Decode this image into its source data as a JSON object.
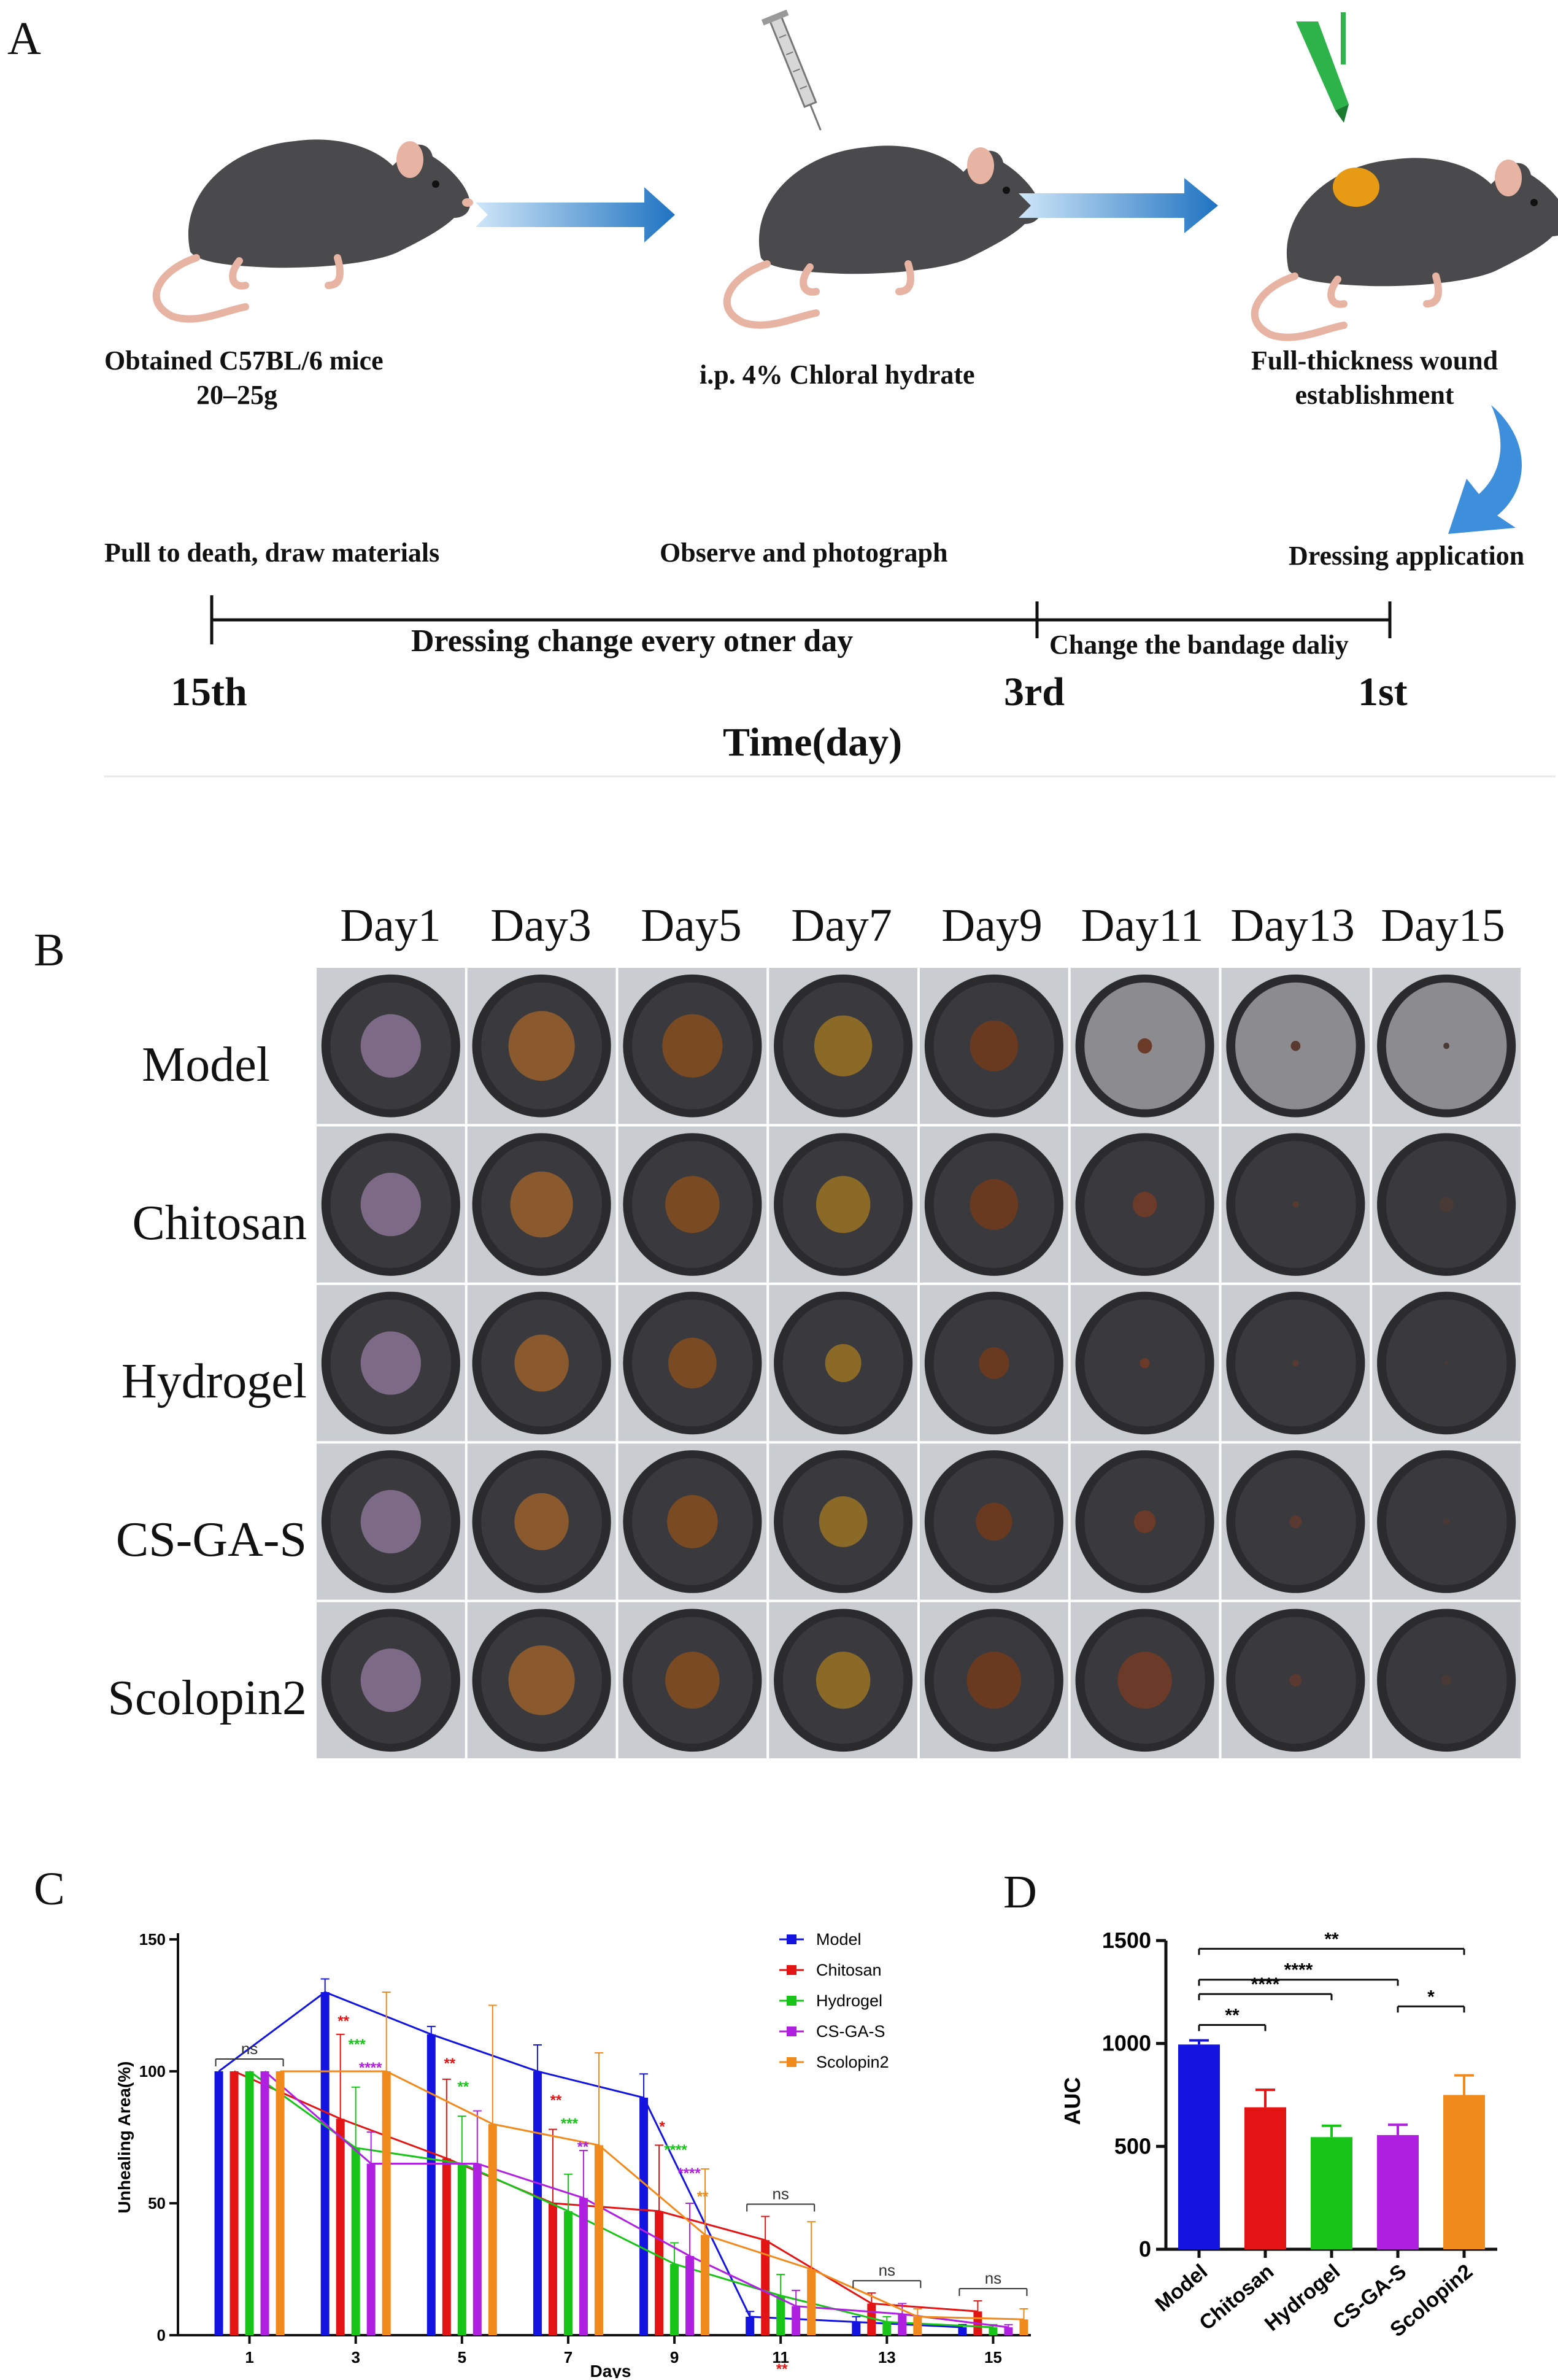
{
  "panel_a": {
    "letter": "A",
    "steps": [
      {
        "line1": "Obtained C57BL/6 mice",
        "line2": "20–25g"
      },
      {
        "line1": "i.p. 4% Chloral hydrate",
        "line2": ""
      },
      {
        "line1": "Full-thickness wound",
        "line2": "establishment"
      }
    ],
    "dressing_application": "Dressing application",
    "timeline": {
      "pull_to_death": "Pull to death, draw materials",
      "observe": "Observe and photograph",
      "dressing_change": "Dressing change every otner day",
      "change_bandage": "Change the bandage daliy",
      "tick_15": "15th",
      "tick_3": "3rd",
      "tick_1": "1st",
      "axis_label": "Time(day)"
    },
    "colors": {
      "mouse": "#4a4a4c",
      "arrow": "#1f73c2",
      "wound": "#e79a14",
      "pen": "#2db34a"
    }
  },
  "panel_b": {
    "letter": "B",
    "days": [
      "Day1",
      "Day3",
      "Day5",
      "Day7",
      "Day9",
      "Day11",
      "Day13",
      "Day15"
    ],
    "groups": [
      "Model",
      "Chitosan",
      "Hydrogel",
      "CS-GA-S",
      "Scolopin2"
    ],
    "wound_size": [
      [
        0.5,
        0.55,
        0.5,
        0.48,
        0.4,
        0.12,
        0.08,
        0.05
      ],
      [
        0.5,
        0.52,
        0.45,
        0.45,
        0.4,
        0.2,
        0.05,
        0.12
      ],
      [
        0.5,
        0.45,
        0.4,
        0.3,
        0.25,
        0.08,
        0.05,
        0.03
      ],
      [
        0.5,
        0.45,
        0.42,
        0.4,
        0.3,
        0.18,
        0.1,
        0.05
      ],
      [
        0.5,
        0.55,
        0.45,
        0.45,
        0.45,
        0.45,
        0.1,
        0.08
      ]
    ]
  },
  "chart_data": [
    {
      "type": "bar",
      "panel": "C",
      "title": "",
      "xlabel": "Days",
      "ylabel": "Unhealing Area(%)",
      "ylim": [
        0,
        150
      ],
      "yticks": [
        "0",
        "50",
        "100",
        "150"
      ],
      "categories": [
        "1",
        "3",
        "5",
        "7",
        "9",
        "11",
        "13",
        "15"
      ],
      "series": [
        {
          "name": "Model",
          "color": "#1414e0",
          "values": [
            100,
            130,
            114,
            100,
            90,
            7,
            5,
            3
          ],
          "errors": [
            0,
            5,
            3,
            10,
            9,
            2,
            2,
            1
          ]
        },
        {
          "name": "Chitosan",
          "color": "#e21414",
          "values": [
            100,
            82,
            67,
            50,
            47,
            36,
            12,
            9
          ],
          "errors": [
            0,
            32,
            30,
            28,
            25,
            9,
            4,
            4
          ]
        },
        {
          "name": "Hydrogel",
          "color": "#18c418",
          "values": [
            100,
            71,
            65,
            47,
            27,
            15,
            5,
            3
          ],
          "errors": [
            0,
            23,
            18,
            14,
            8,
            8,
            2,
            1
          ]
        },
        {
          "name": "CS-GA-S",
          "color": "#b020e0",
          "values": [
            100,
            65,
            65,
            52,
            30,
            11,
            8,
            3
          ],
          "errors": [
            0,
            12,
            20,
            18,
            20,
            6,
            4,
            1
          ]
        },
        {
          "name": "Scolopin2",
          "color": "#f08a1c",
          "values": [
            100,
            100,
            80,
            72,
            38,
            25,
            7,
            6
          ],
          "errors": [
            0,
            30,
            45,
            35,
            25,
            18,
            3,
            4
          ]
        }
      ],
      "annotations": [
        {
          "text": "ns",
          "category": "1",
          "color": "#333333"
        },
        {
          "text": "**",
          "category": "3",
          "color": "#e21414"
        },
        {
          "text": "***",
          "category": "3",
          "color": "#18c418"
        },
        {
          "text": "****",
          "category": "3",
          "color": "#b020e0"
        },
        {
          "text": "**",
          "category": "5",
          "color": "#e21414"
        },
        {
          "text": "**",
          "category": "5",
          "color": "#18c418"
        },
        {
          "text": "**",
          "category": "7",
          "color": "#e21414"
        },
        {
          "text": "***",
          "category": "7",
          "color": "#18c418"
        },
        {
          "text": "**",
          "category": "7",
          "color": "#b020e0"
        },
        {
          "text": "*",
          "category": "9",
          "color": "#e21414"
        },
        {
          "text": "****",
          "category": "9",
          "color": "#18c418"
        },
        {
          "text": "****",
          "category": "9",
          "color": "#b020e0"
        },
        {
          "text": "**",
          "category": "9",
          "color": "#f08a1c"
        },
        {
          "text": "ns",
          "category": "11",
          "color": "#333333"
        },
        {
          "text": "**",
          "category": "11",
          "color": "#e21414"
        },
        {
          "text": "ns",
          "category": "13",
          "color": "#333333"
        },
        {
          "text": "ns",
          "category": "15",
          "color": "#333333"
        }
      ],
      "legend": "top-right"
    },
    {
      "type": "bar",
      "panel": "D",
      "title": "",
      "xlabel": "",
      "ylabel": "AUC",
      "ylim": [
        0,
        1500
      ],
      "yticks": [
        "0",
        "500",
        "1000",
        "1500"
      ],
      "categories": [
        "Model",
        "Chitosan",
        "Hydrogel",
        "CS-GA-S",
        "Scolopin2"
      ],
      "values": [
        995,
        690,
        545,
        555,
        750
      ],
      "errors": [
        20,
        85,
        55,
        50,
        95
      ],
      "colors": [
        "#1414e0",
        "#e21414",
        "#18c418",
        "#b020e0",
        "#f08a1c"
      ],
      "significance": [
        {
          "from": "Model",
          "to": "Chitosan",
          "label": "**"
        },
        {
          "from": "Model",
          "to": "Hydrogel",
          "label": "****"
        },
        {
          "from": "Model",
          "to": "CS-GA-S",
          "label": "****"
        },
        {
          "from": "Model",
          "to": "Scolopin2",
          "label": "**"
        },
        {
          "from": "CS-GA-S",
          "to": "Scolopin2",
          "label": "*"
        }
      ]
    }
  ]
}
